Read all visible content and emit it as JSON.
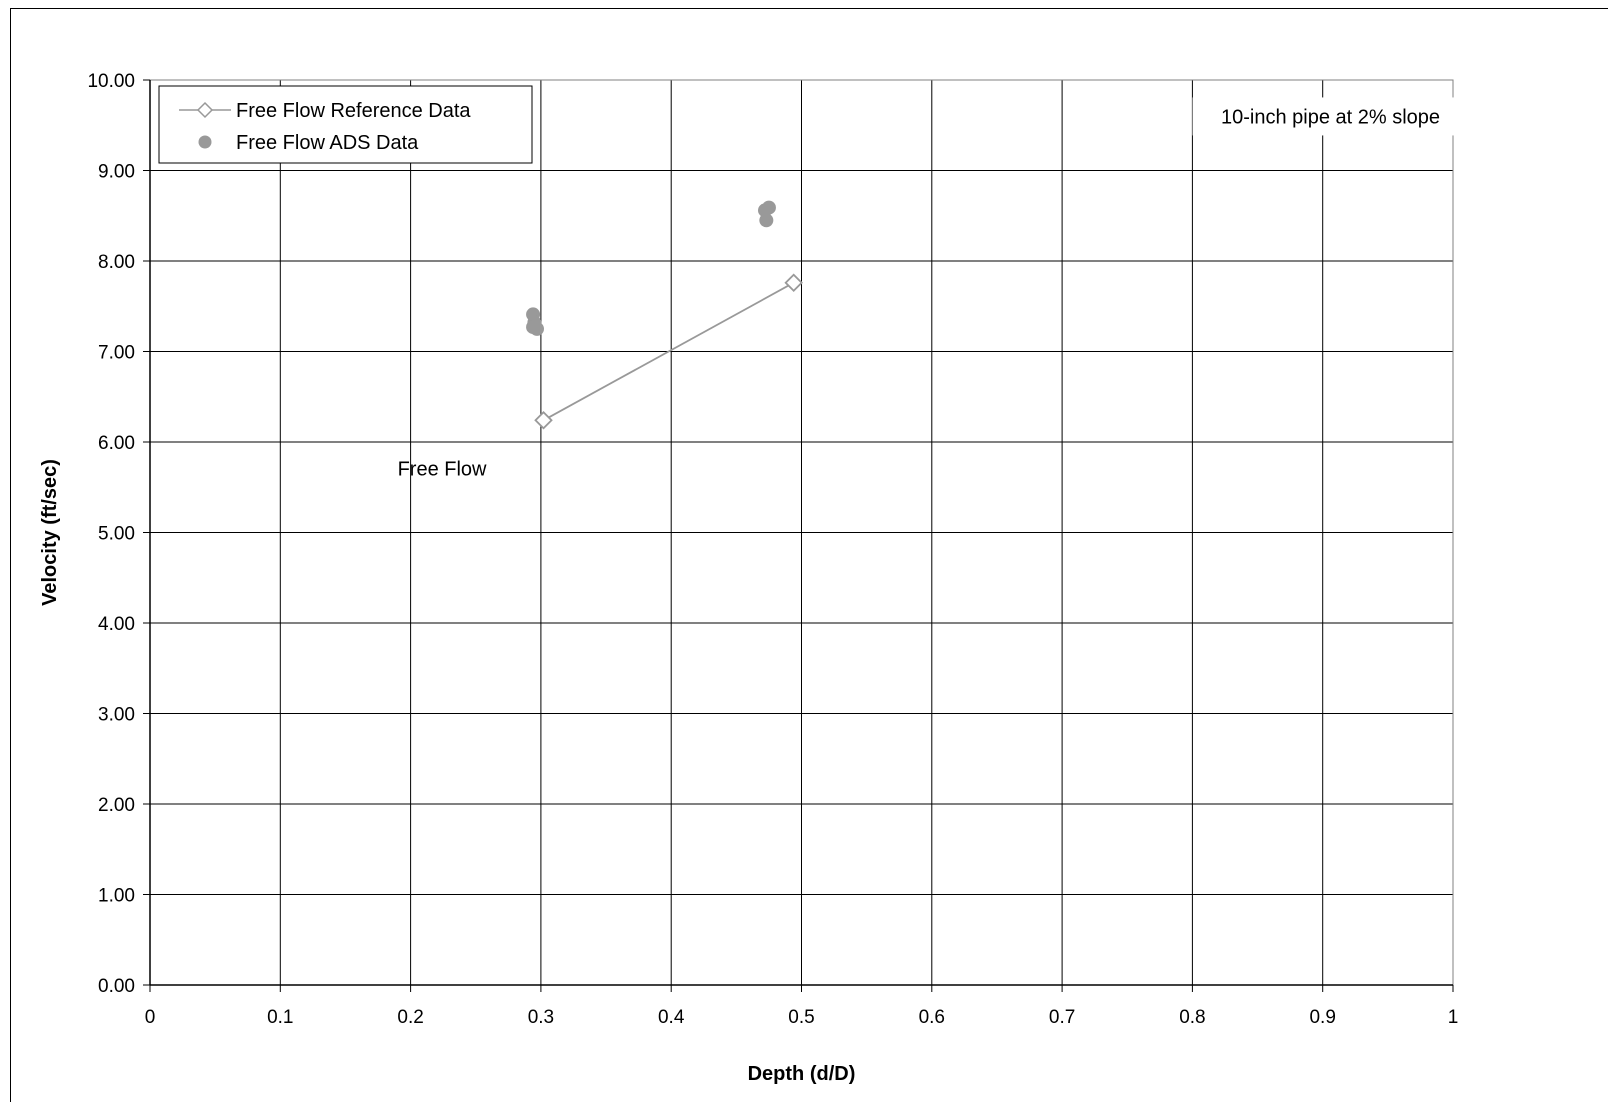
{
  "chart_data": {
    "type": "scatter",
    "xlabel": "Depth (d/D)",
    "ylabel": "Velocity (ft/sec)",
    "xlim": [
      0,
      1
    ],
    "ylim": [
      0,
      10
    ],
    "x_ticks": [
      "0",
      "0.1",
      "0.2",
      "0.3",
      "0.4",
      "0.5",
      "0.6",
      "0.7",
      "0.8",
      "0.9",
      "1"
    ],
    "y_ticks": [
      "0.00",
      "1.00",
      "2.00",
      "3.00",
      "4.00",
      "5.00",
      "6.00",
      "7.00",
      "8.00",
      "9.00",
      "10.00"
    ],
    "grid": true,
    "legend_position": "top-left",
    "series": [
      {
        "name": "Free Flow Reference Data",
        "style": "line-open-diamond",
        "color": "#999999",
        "points": [
          {
            "x": 0.302,
            "y": 6.24
          },
          {
            "x": 0.494,
            "y": 7.76
          }
        ]
      },
      {
        "name": "Free Flow ADS Data",
        "style": "filled-circle",
        "color": "#999999",
        "points": [
          {
            "x": 0.294,
            "y": 7.41
          },
          {
            "x": 0.295,
            "y": 7.32
          },
          {
            "x": 0.294,
            "y": 7.27
          },
          {
            "x": 0.297,
            "y": 7.25
          },
          {
            "x": 0.472,
            "y": 8.56
          },
          {
            "x": 0.475,
            "y": 8.59
          },
          {
            "x": 0.473,
            "y": 8.45
          }
        ]
      }
    ],
    "annotations": [
      {
        "text": "10-inch pipe at 2% slope",
        "x": 0.906,
        "y": 9.52
      },
      {
        "text": "Free Flow",
        "x": 0.19,
        "y": 5.63
      }
    ]
  }
}
